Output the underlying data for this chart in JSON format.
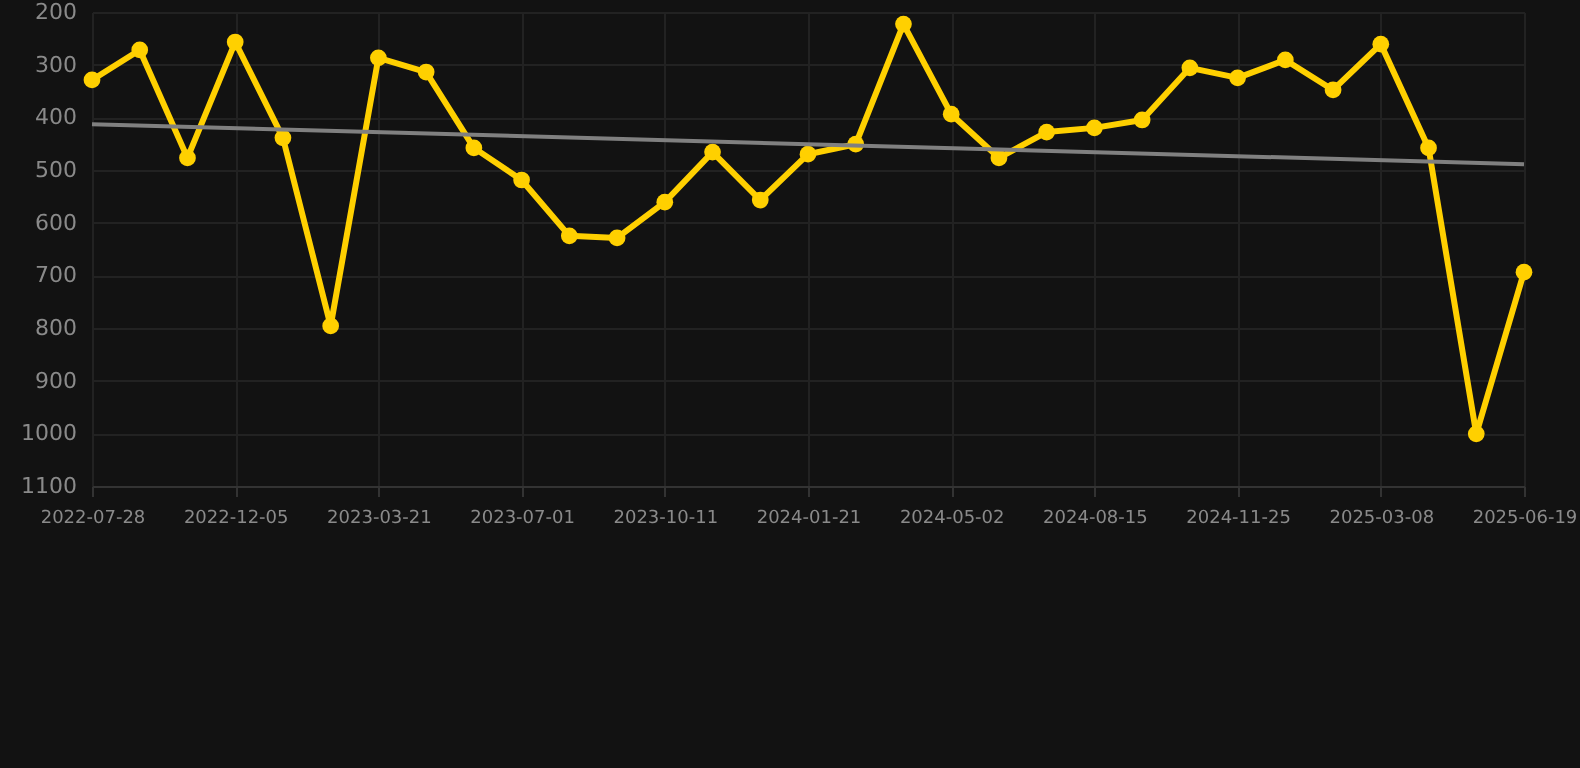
{
  "chart_data": {
    "type": "line",
    "categories": [
      "2022-07-28",
      null,
      null,
      "2022-12-05",
      null,
      null,
      "2023-03-21",
      null,
      null,
      "2023-07-01",
      null,
      null,
      "2023-10-11",
      null,
      null,
      "2024-01-21",
      null,
      null,
      "2024-05-02",
      null,
      null,
      "2024-08-15",
      null,
      null,
      "2024-11-25",
      null,
      null,
      "2025-03-08",
      null,
      null,
      "2025-06-19"
    ],
    "series": [
      {
        "color": "#ffd000",
        "marker": "circle",
        "values": [
          329,
          272,
          477,
          257,
          439,
          796,
          287,
          314,
          458,
          519,
          625,
          629,
          561,
          466,
          557,
          470,
          451,
          223,
          394,
          477,
          428,
          420,
          405,
          306,
          325,
          291,
          348,
          261,
          458,
          1001,
          694
        ]
      },
      {
        "type": "line",
        "color": "#808080",
        "marker": "none",
        "values": [
          413,
          null,
          null,
          null,
          null,
          null,
          null,
          null,
          null,
          null,
          null,
          null,
          null,
          null,
          null,
          null,
          null,
          null,
          null,
          null,
          null,
          null,
          null,
          null,
          null,
          null,
          null,
          null,
          null,
          null,
          489
        ]
      }
    ],
    "ylim": [
      1100,
      200
    ],
    "yticks": [
      200,
      300,
      400,
      500,
      600,
      700,
      800,
      900,
      1000,
      1100
    ],
    "grid": true,
    "line_style": "solid"
  }
}
